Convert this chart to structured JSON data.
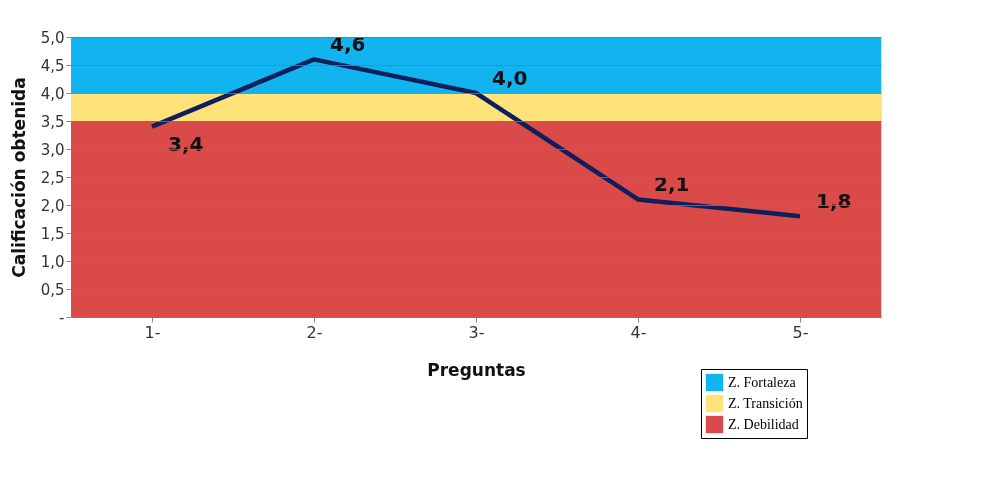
{
  "chart_data": {
    "type": "line",
    "xlabel": "Preguntas",
    "ylabel": "Calificación obtenida",
    "categories": [
      "1-",
      "2-",
      "3-",
      "4-",
      "5-"
    ],
    "series": [
      {
        "color": "#0d1f5c",
        "values": [
          3.4,
          4.6,
          4.0,
          2.1,
          1.8
        ],
        "value_labels": [
          "3,4",
          "4,6",
          "4,0",
          "2,1",
          "1,8"
        ]
      }
    ],
    "ylim": [
      0,
      5
    ],
    "yticks": [
      {
        "value": 0,
        "label": "-"
      },
      {
        "value": 0.5,
        "label": "0,5"
      },
      {
        "value": 1,
        "label": "1,0"
      },
      {
        "value": 1.5,
        "label": "1,5"
      },
      {
        "value": 2,
        "label": "2,0"
      },
      {
        "value": 2.5,
        "label": "2,5"
      },
      {
        "value": 3,
        "label": "3,0"
      },
      {
        "value": 3.5,
        "label": "3,5"
      },
      {
        "value": 4,
        "label": "4,0"
      },
      {
        "value": 4.5,
        "label": "4,5"
      },
      {
        "value": 5,
        "label": "5,0"
      }
    ],
    "bands": [
      {
        "axis": "y",
        "from": 4,
        "to": 5,
        "label": "Z. Fortaleza",
        "color": "#12b4f0"
      },
      {
        "axis": "y",
        "from": 3.5,
        "to": 4,
        "label": "Z. Transición",
        "color": "#ffe27a"
      },
      {
        "axis": "y",
        "from": 0,
        "to": 3.5,
        "label": "Z. Debilidad",
        "color": "#d94a48"
      }
    ],
    "grid": "y",
    "legend": "bottom right",
    "marker": "none",
    "line_style": "solid"
  }
}
